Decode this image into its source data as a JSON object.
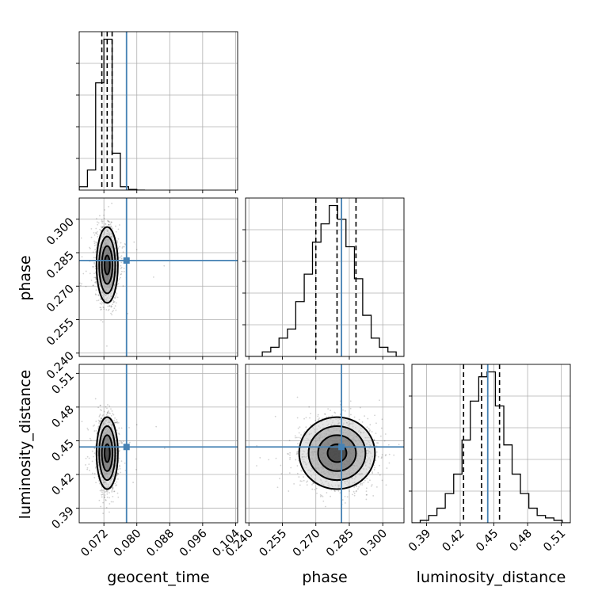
{
  "chart_data": {
    "type": "corner",
    "parameters": [
      "geocent_time",
      "phase",
      "luminosity_distance"
    ],
    "truth": {
      "geocent_time": 0.0775,
      "phase": 0.2815,
      "luminosity_distance": 0.4445
    },
    "quantiles": {
      "geocent_time": [
        0.0715,
        0.0728,
        0.074
      ],
      "phase": [
        0.27,
        0.2795,
        0.288
      ],
      "luminosity_distance": [
        0.423,
        0.439,
        0.455
      ]
    },
    "ranges": {
      "geocent_time": [
        0.066,
        0.1045
      ],
      "phase": [
        0.2385,
        0.3095
      ],
      "luminosity_distance": [
        0.377,
        0.518
      ]
    },
    "ticks": {
      "geocent_time": {
        "values": [
          0.072,
          0.08,
          0.088,
          0.096,
          0.104
        ],
        "labels": [
          "0.072",
          "0.080",
          "0.088",
          "0.096",
          "0.104"
        ]
      },
      "phase": {
        "values": [
          0.24,
          0.255,
          0.27,
          0.285,
          0.3
        ],
        "labels": [
          "0.240",
          "0.255",
          "0.270",
          "0.285",
          "0.300"
        ]
      },
      "luminosity_distance": {
        "values": [
          0.39,
          0.42,
          0.45,
          0.48,
          0.51
        ],
        "labels": [
          "0.39",
          "0.42",
          "0.45",
          "0.48",
          "0.51"
        ]
      }
    },
    "histograms": {
      "geocent_time": {
        "bin_edges": [
          0.066,
          0.068,
          0.07,
          0.072,
          0.074,
          0.076,
          0.078,
          0.08,
          0.082
        ],
        "counts": [
          1,
          6,
          32,
          45,
          11,
          1,
          0.2,
          0
        ]
      },
      "phase": {
        "bin_edges": [
          0.2385,
          0.2423,
          0.246,
          0.2498,
          0.2535,
          0.2573,
          0.261,
          0.2648,
          0.2685,
          0.2723,
          0.276,
          0.2798,
          0.2835,
          0.2873,
          0.291,
          0.2948,
          0.2985,
          0.3023,
          0.306,
          0.3095
        ],
        "counts": [
          0,
          0,
          1,
          2,
          4,
          6,
          12,
          18,
          25,
          29,
          33,
          30,
          24,
          17,
          9,
          4,
          2,
          1,
          0
        ]
      },
      "luminosity_distance": {
        "bin_edges": [
          0.377,
          0.3844,
          0.3919,
          0.3993,
          0.4067,
          0.4142,
          0.4216,
          0.429,
          0.4365,
          0.4439,
          0.4513,
          0.4588,
          0.4662,
          0.4736,
          0.4811,
          0.4885,
          0.4959,
          0.5034,
          0.5108,
          0.518
        ],
        "counts": [
          0,
          0.5,
          1.5,
          3,
          6,
          10,
          17,
          25,
          30,
          31,
          24,
          16,
          10,
          6,
          3,
          1.5,
          1,
          0.5,
          0
        ]
      }
    },
    "posterior_2d": {
      "phase_vs_geocent_time": {
        "center": [
          0.0728,
          0.2795
        ],
        "sigma": [
          0.0013,
          0.0085
        ],
        "contour_levels": [
          0.5,
          1.0,
          1.5,
          2.0
        ]
      },
      "luminosity_distance_vs_geocent_time": {
        "center": [
          0.0728,
          0.439
        ],
        "sigma": [
          0.0013,
          0.016
        ],
        "contour_levels": [
          0.5,
          1.0,
          1.5,
          2.0
        ]
      },
      "luminosity_distance_vs_phase": {
        "center": [
          0.2795,
          0.439
        ],
        "sigma": [
          0.0085,
          0.016
        ],
        "contour_levels": [
          0.5,
          1.0,
          1.5,
          2.0
        ]
      }
    },
    "colors": {
      "truth": "#4682b4",
      "hist": "#000000",
      "grid": "#b0b0b0",
      "samples": "#000000"
    },
    "grid": true
  }
}
